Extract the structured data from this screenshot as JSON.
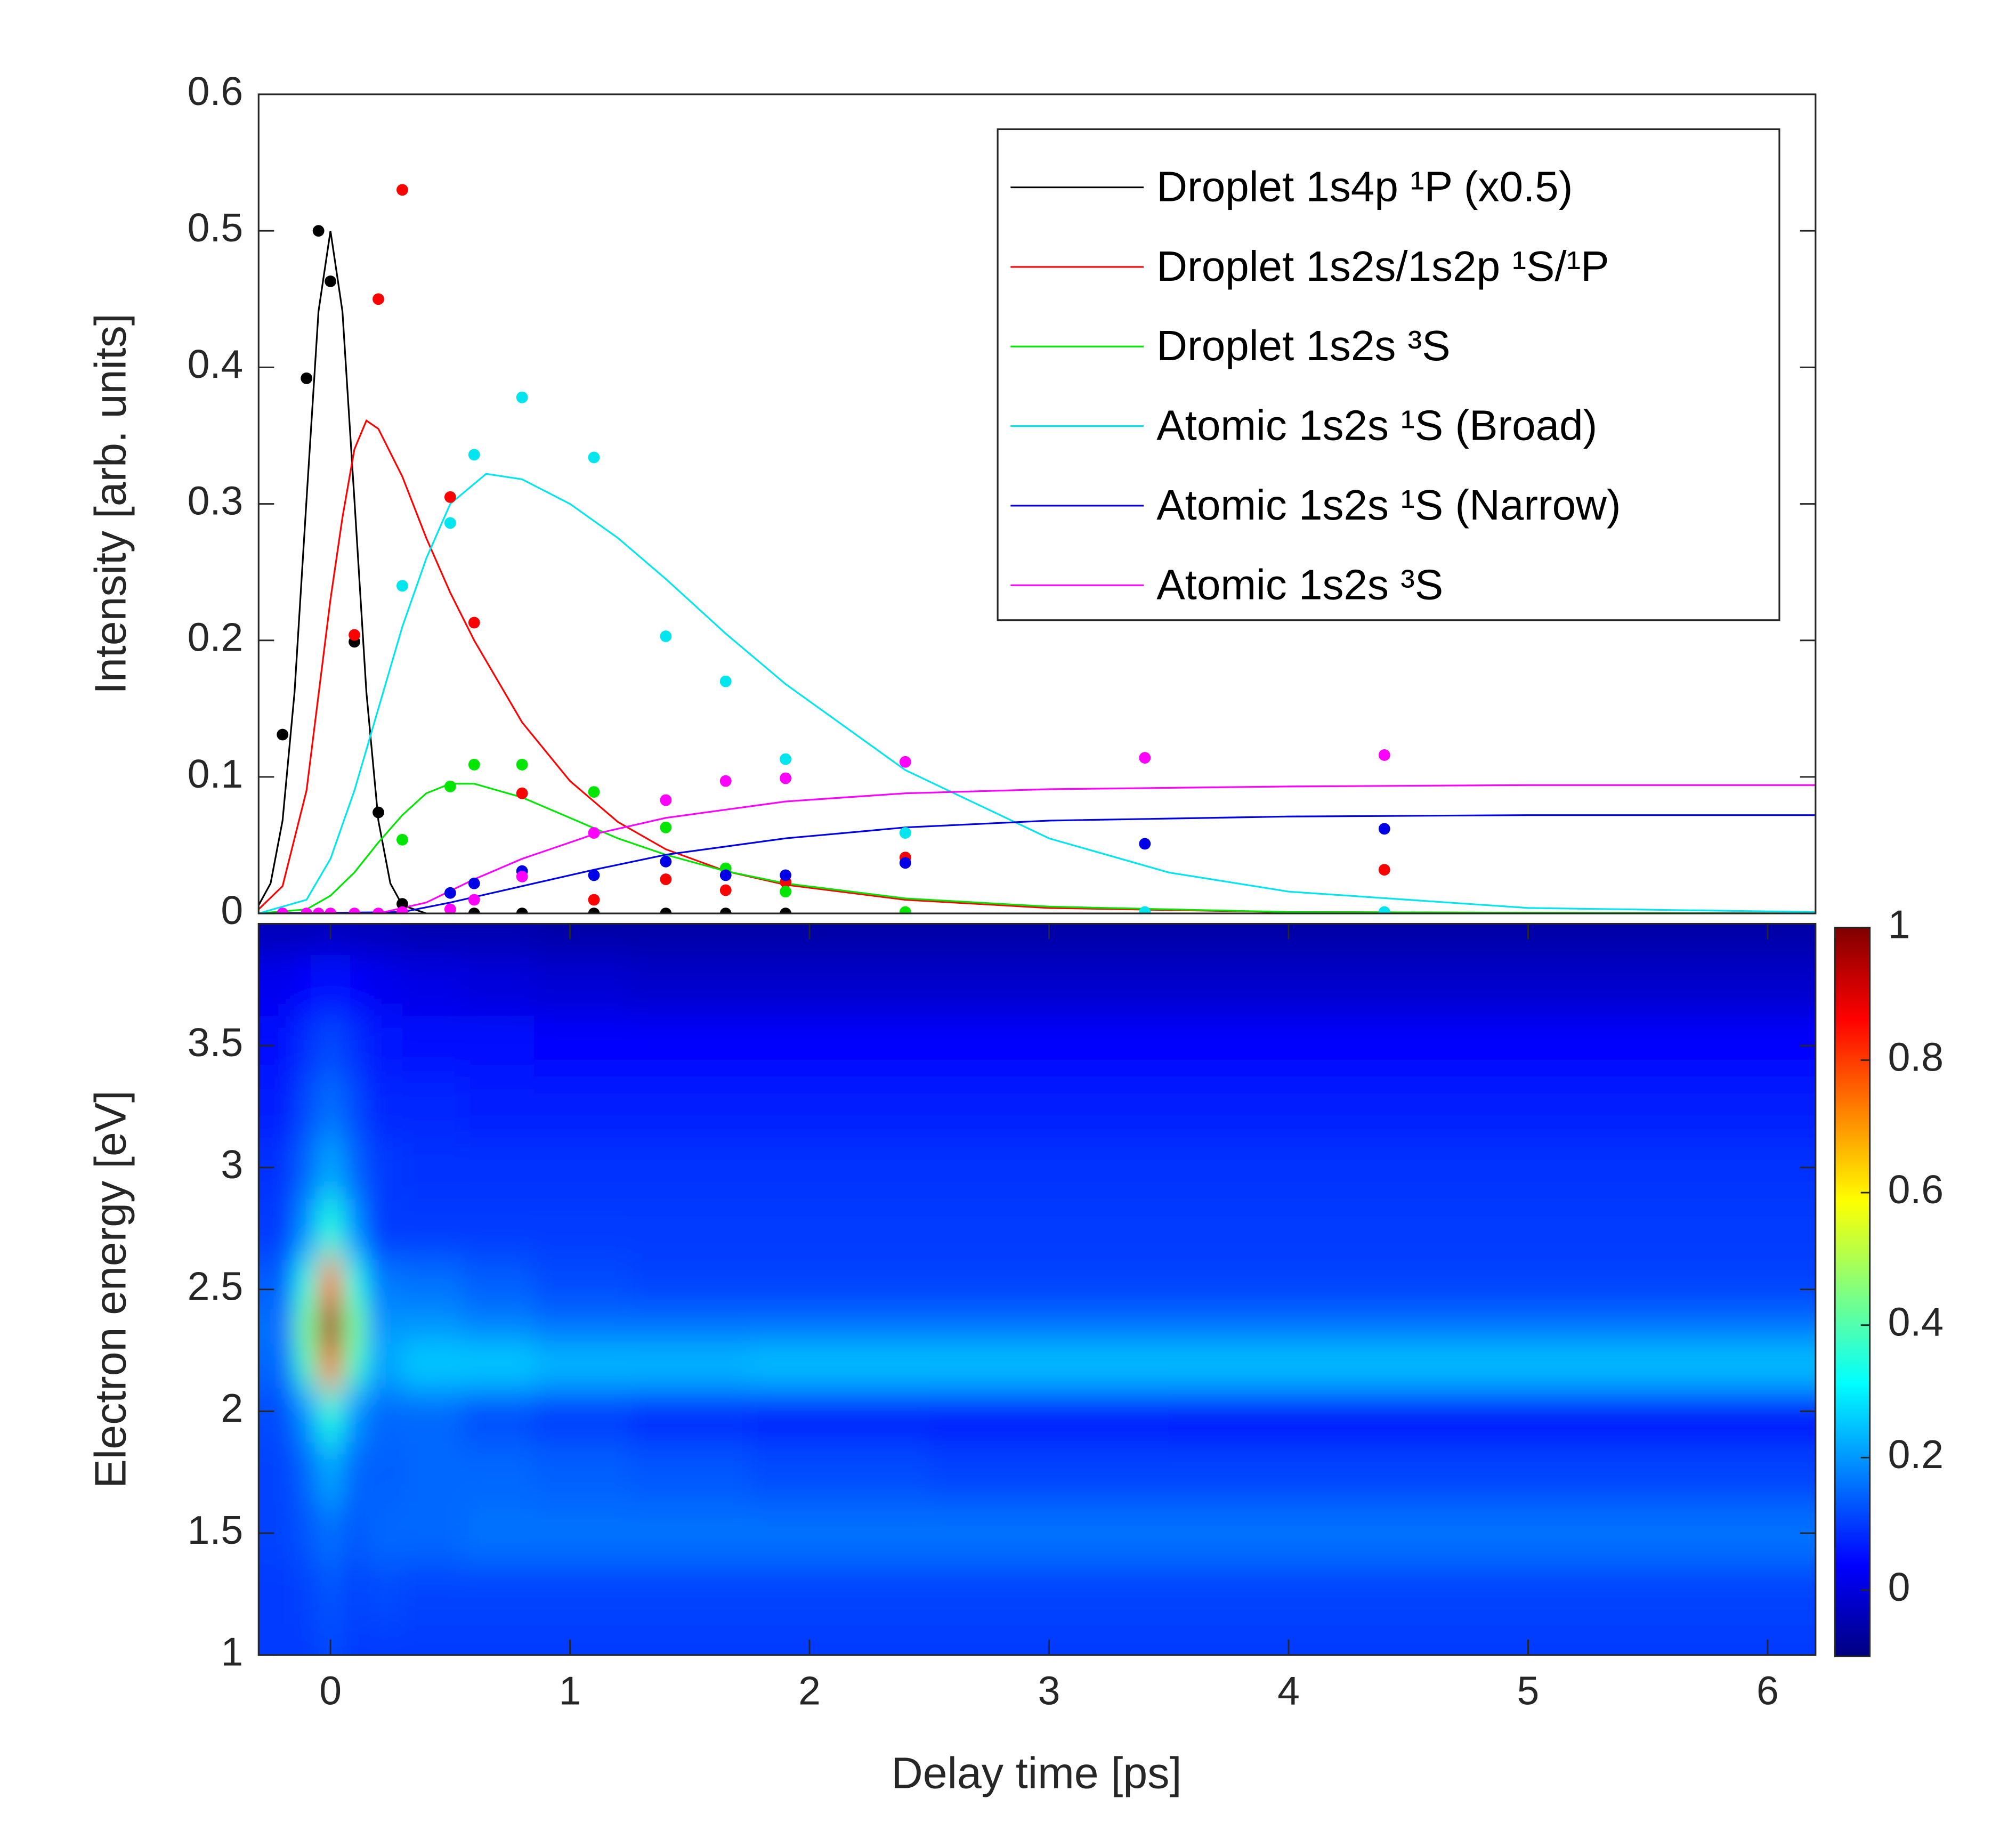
{
  "chart_data": [
    {
      "type": "scatter",
      "ylabel": "Intensity [arb. units]",
      "xlim": [
        -0.3,
        6.2
      ],
      "ylim": [
        0,
        0.6
      ],
      "yticks": [
        0,
        0.1,
        0.2,
        0.3,
        0.4,
        0.5,
        0.6
      ],
      "legend_loc": "upper right",
      "series": [
        {
          "name": "Droplet  1s4p ¹P (x0.5)",
          "color": "#000000",
          "x": [
            -0.2,
            -0.1,
            -0.05,
            0,
            0.1,
            0.2,
            0.3,
            0.6,
            0.8,
            1.1,
            1.4,
            1.65,
            1.9
          ],
          "values": [
            0.131,
            0.392,
            0.5,
            0.463,
            0.199,
            0.074,
            0.007,
            0,
            0,
            0,
            0,
            0,
            0
          ],
          "fit_x": [
            -0.3,
            -0.25,
            -0.2,
            -0.15,
            -0.1,
            -0.05,
            0,
            0.05,
            0.1,
            0.15,
            0.2,
            0.25,
            0.3,
            0.4,
            0.5,
            6.2
          ],
          "fit_values": [
            0.006,
            0.022,
            0.068,
            0.162,
            0.303,
            0.441,
            0.5,
            0.441,
            0.303,
            0.162,
            0.068,
            0.022,
            0.006,
            0,
            0,
            0
          ]
        },
        {
          "name": "Droplet  1s2s/1s2p ¹S/¹P",
          "color": "#ff0000",
          "x": [
            0.1,
            0.2,
            0.3,
            0.5,
            0.6,
            0.8,
            1.1,
            1.4,
            1.65,
            1.9,
            2.4,
            4.4
          ],
          "values": [
            0.204,
            0.45,
            0.53,
            0.305,
            0.213,
            0.088,
            0.01,
            0.025,
            0.017,
            0.023,
            0.041,
            0.032
          ],
          "fit_x": [
            -0.3,
            -0.2,
            -0.1,
            0,
            0.05,
            0.1,
            0.15,
            0.2,
            0.3,
            0.4,
            0.5,
            0.6,
            0.8,
            1.0,
            1.2,
            1.4,
            1.65,
            1.9,
            2.4,
            3,
            4,
            6.2
          ],
          "fit_values": [
            0.003,
            0.02,
            0.09,
            0.23,
            0.29,
            0.34,
            0.361,
            0.355,
            0.32,
            0.275,
            0.235,
            0.2,
            0.14,
            0.097,
            0.067,
            0.047,
            0.031,
            0.021,
            0.01,
            0.004,
            0.001,
            0
          ]
        },
        {
          "name": "Droplet  1s2s ³S",
          "color": "#00e600",
          "x": [
            0.3,
            0.5,
            0.6,
            0.8,
            1.1,
            1.4,
            1.65,
            1.9,
            2.4
          ],
          "values": [
            0.054,
            0.093,
            0.109,
            0.109,
            0.089,
            0.063,
            0.033,
            0.016,
            0.001
          ],
          "fit_x": [
            -0.3,
            -0.1,
            0,
            0.1,
            0.2,
            0.3,
            0.4,
            0.5,
            0.6,
            0.8,
            1.0,
            1.2,
            1.4,
            1.65,
            1.9,
            2.4,
            3,
            4,
            6.2
          ],
          "fit_values": [
            0,
            0.003,
            0.013,
            0.03,
            0.052,
            0.072,
            0.088,
            0.095,
            0.095,
            0.085,
            0.07,
            0.055,
            0.043,
            0.031,
            0.022,
            0.011,
            0.005,
            0.001,
            0
          ]
        },
        {
          "name": "Atomic  1s2s ¹S (Broad)",
          "color": "#00e5ee",
          "x": [
            0.3,
            0.5,
            0.6,
            0.8,
            1.1,
            1.4,
            1.65,
            1.9,
            2.4,
            3.4,
            4.4
          ],
          "values": [
            0.24,
            0.286,
            0.336,
            0.378,
            0.334,
            0.203,
            0.17,
            0.113,
            0.059,
            0.001,
            0.001
          ],
          "fit_x": [
            -0.3,
            -0.1,
            0,
            0.1,
            0.2,
            0.3,
            0.4,
            0.5,
            0.65,
            0.8,
            1.0,
            1.2,
            1.4,
            1.65,
            1.9,
            2.4,
            3,
            3.5,
            4,
            5,
            6.2
          ],
          "fit_values": [
            0,
            0.01,
            0.04,
            0.09,
            0.15,
            0.21,
            0.26,
            0.3,
            0.322,
            0.318,
            0.3,
            0.275,
            0.245,
            0.205,
            0.168,
            0.105,
            0.055,
            0.03,
            0.016,
            0.004,
            0.001
          ]
        },
        {
          "name": "Atomic  1s2s ¹S (Narrow)",
          "color": "#0000e6",
          "x": [
            0.5,
            0.6,
            0.8,
            1.1,
            1.4,
            1.65,
            1.9,
            2.4,
            3.4,
            4.4
          ],
          "values": [
            0.015,
            0.022,
            0.031,
            0.028,
            0.038,
            0.028,
            0.028,
            0.037,
            0.051,
            0.062
          ],
          "fit_x": [
            -0.3,
            0.3,
            0.5,
            0.8,
            1.1,
            1.4,
            1.9,
            2.4,
            3,
            4,
            5,
            6.2
          ],
          "fit_values": [
            0,
            0.001,
            0.008,
            0.02,
            0.032,
            0.043,
            0.055,
            0.063,
            0.068,
            0.071,
            0.072,
            0.072
          ]
        },
        {
          "name": "Atomic  1s2s ³S",
          "color": "#ff00ff",
          "x": [
            -0.2,
            -0.1,
            -0.05,
            0,
            0.1,
            0.2,
            0.3,
            0.5,
            0.6,
            0.8,
            1.1,
            1.4,
            1.65,
            1.9,
            2.4,
            3.4,
            4.4
          ],
          "values": [
            0,
            0,
            0,
            0,
            0,
            0,
            0.001,
            0.003,
            0.01,
            0.027,
            0.059,
            0.083,
            0.097,
            0.099,
            0.111,
            0.114,
            0.116
          ],
          "fit_x": [
            -0.3,
            0.2,
            0.4,
            0.6,
            0.8,
            1.1,
            1.4,
            1.9,
            2.4,
            3,
            4,
            5,
            6.2
          ],
          "fit_values": [
            0,
            0,
            0.008,
            0.025,
            0.04,
            0.058,
            0.07,
            0.082,
            0.088,
            0.091,
            0.093,
            0.094,
            0.094
          ]
        }
      ]
    },
    {
      "type": "heatmap",
      "xlabel": "Delay time [ps]",
      "ylabel": "Electron energy [eV]",
      "xlim": [
        -0.3,
        6.2
      ],
      "ylim": [
        1,
        4
      ],
      "xticks": [
        0,
        1,
        2,
        3,
        4,
        5,
        6
      ],
      "yticks": [
        1,
        1.5,
        2,
        2.5,
        3,
        3.5
      ],
      "clim": [
        -0.1,
        1
      ],
      "cticks": [
        0,
        0.2,
        0.4,
        0.6,
        0.8,
        1
      ],
      "colormap": "jet",
      "x": [
        -0.2,
        -0.1,
        0,
        0.1,
        0.2,
        0.4,
        0.7,
        1,
        1.5,
        2,
        3,
        4,
        5,
        6
      ],
      "y": [
        1,
        1.25,
        1.5,
        1.75,
        2,
        2.2,
        2.35,
        2.5,
        2.75,
        3,
        3.25,
        3.5,
        3.75,
        4
      ],
      "z": [
        [
          0.1,
          0.1,
          0.12,
          0.1,
          0.1,
          0.1,
          0.1,
          0.1,
          0.1,
          0.1,
          0.1,
          0.1,
          0.1,
          0.1
        ],
        [
          0.1,
          0.11,
          0.13,
          0.11,
          0.12,
          0.11,
          0.11,
          0.11,
          0.11,
          0.11,
          0.11,
          0.11,
          0.11,
          0.11
        ],
        [
          0.11,
          0.13,
          0.16,
          0.13,
          0.15,
          0.15,
          0.16,
          0.16,
          0.16,
          0.16,
          0.16,
          0.16,
          0.16,
          0.16
        ],
        [
          0.11,
          0.15,
          0.22,
          0.15,
          0.14,
          0.15,
          0.15,
          0.14,
          0.13,
          0.12,
          0.11,
          0.11,
          0.11,
          0.11
        ],
        [
          0.12,
          0.2,
          0.35,
          0.2,
          0.15,
          0.15,
          0.12,
          0.1,
          0.08,
          0.07,
          0.06,
          0.05,
          0.05,
          0.05
        ],
        [
          0.15,
          0.38,
          0.75,
          0.38,
          0.22,
          0.26,
          0.26,
          0.24,
          0.24,
          0.25,
          0.25,
          0.25,
          0.25,
          0.25
        ],
        [
          0.16,
          0.45,
          1,
          0.45,
          0.2,
          0.2,
          0.18,
          0.16,
          0.16,
          0.16,
          0.16,
          0.16,
          0.16,
          0.16
        ],
        [
          0.14,
          0.35,
          0.75,
          0.35,
          0.17,
          0.16,
          0.14,
          0.12,
          0.11,
          0.11,
          0.11,
          0.11,
          0.11,
          0.11
        ],
        [
          0.1,
          0.2,
          0.35,
          0.2,
          0.1,
          0.1,
          0.1,
          0.1,
          0.1,
          0.1,
          0.1,
          0.1,
          0.1,
          0.1
        ],
        [
          0.09,
          0.15,
          0.22,
          0.15,
          0.1,
          0.09,
          0.09,
          0.09,
          0.09,
          0.09,
          0.09,
          0.09,
          0.09,
          0.09
        ],
        [
          0.07,
          0.12,
          0.16,
          0.12,
          0.08,
          0.08,
          0.07,
          0.07,
          0.07,
          0.07,
          0.07,
          0.07,
          0.07,
          0.07
        ],
        [
          0.05,
          0.09,
          0.12,
          0.09,
          0.06,
          0.05,
          0.05,
          0.04,
          0.04,
          0.04,
          0.04,
          0.04,
          0.04,
          0.04
        ],
        [
          0.02,
          0.04,
          0.06,
          0.04,
          0.02,
          0.01,
          0,
          -0.01,
          -0.02,
          -0.02,
          -0.02,
          -0.02,
          -0.02,
          -0.02
        ],
        [
          -0.04,
          -0.04,
          -0.03,
          -0.04,
          -0.04,
          -0.05,
          -0.05,
          -0.06,
          -0.06,
          -0.06,
          -0.06,
          -0.06,
          -0.06,
          -0.06
        ]
      ]
    }
  ]
}
